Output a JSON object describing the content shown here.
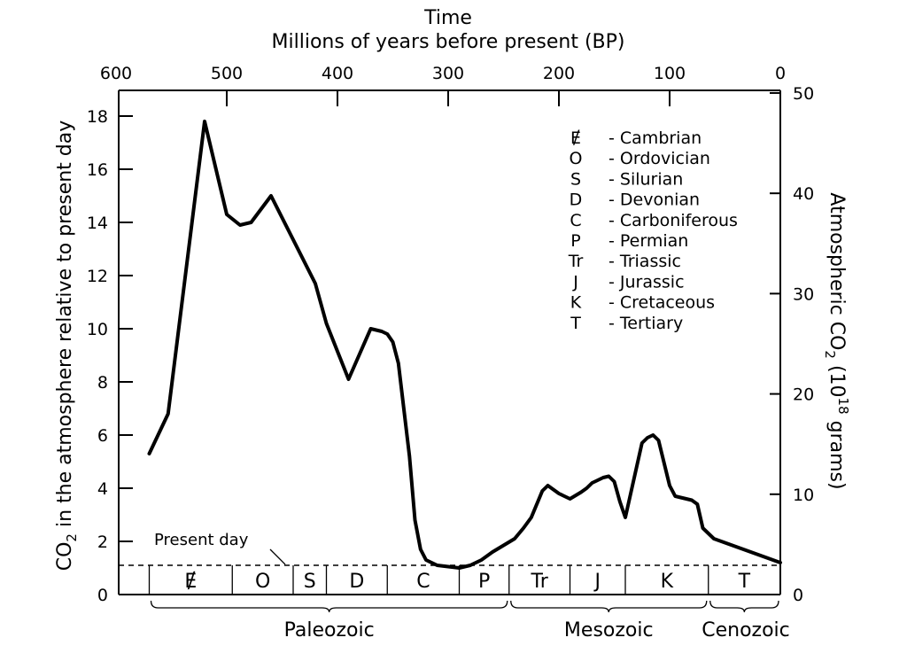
{
  "chart_data": {
    "type": "line",
    "title": "Time",
    "subtitle": "Millions of years before present (BP)",
    "ylabel_left": "CO₂ in the atmosphere relative to present day",
    "ylabel_right_prefix": "Atmospheric CO",
    "ylabel_right_sub": "2",
    "ylabel_right_mid": " (10",
    "ylabel_right_sup": "18",
    "ylabel_right_suffix": " grams)",
    "ylabel_left_co": "CO",
    "ylabel_left_sub": "2",
    "ylabel_left_rest": " in the atmosphere relative to present day",
    "xlim": [
      600,
      0
    ],
    "ylim_left": [
      0,
      19
    ],
    "x_ticks": [
      600,
      500,
      400,
      300,
      200,
      100,
      0
    ],
    "x_tick_labels": [
      "600",
      "500",
      "400",
      "300",
      "200",
      "100",
      "0"
    ],
    "y_left_ticks": [
      0,
      2,
      4,
      6,
      8,
      10,
      12,
      14,
      16,
      18
    ],
    "y_left_tick_labels": [
      "0",
      "2",
      "4",
      "6",
      "8",
      "10",
      "12",
      "14",
      "16",
      "18"
    ],
    "y_right_ticks": [
      0,
      10,
      20,
      30,
      40,
      50
    ],
    "y_right_tick_labels": [
      "0",
      "10",
      "20",
      "30",
      "40",
      "50"
    ],
    "y_right_per_left_unit": 2.65,
    "series": [
      {
        "x": [
          570,
          553,
          520,
          500,
          488,
          478,
          460,
          420,
          410,
          390,
          370,
          360,
          355,
          350,
          345,
          335,
          330,
          325,
          320,
          310,
          300,
          290,
          280,
          270,
          260,
          240,
          232,
          225,
          215,
          210,
          200,
          190,
          180,
          175,
          170,
          165,
          160,
          155,
          150,
          145,
          140,
          125,
          120,
          115,
          110,
          100,
          95,
          90,
          85,
          80,
          75,
          70,
          60,
          40,
          20,
          0
        ],
        "y": [
          5.3,
          6.8,
          17.8,
          14.3,
          13.9,
          14.0,
          15.0,
          11.7,
          10.2,
          8.1,
          10.0,
          9.9,
          9.8,
          9.5,
          8.7,
          5.2,
          2.8,
          1.7,
          1.3,
          1.1,
          1.05,
          1.0,
          1.1,
          1.3,
          1.6,
          2.1,
          2.5,
          2.9,
          3.9,
          4.1,
          3.8,
          3.6,
          3.85,
          4.0,
          4.2,
          4.3,
          4.4,
          4.45,
          4.25,
          3.5,
          2.9,
          5.7,
          5.9,
          6.0,
          5.8,
          4.1,
          3.7,
          3.65,
          3.6,
          3.55,
          3.4,
          2.5,
          2.1,
          1.8,
          1.5,
          1.2
        ]
      }
    ],
    "reference_line": {
      "y": 1.1,
      "label": "Present day"
    },
    "periods": [
      {
        "symbol": "Ɇ",
        "start": 570,
        "end": 495
      },
      {
        "symbol": "O",
        "start": 495,
        "end": 440
      },
      {
        "symbol": "S",
        "start": 440,
        "end": 410
      },
      {
        "symbol": "D",
        "start": 410,
        "end": 355
      },
      {
        "symbol": "C",
        "start": 355,
        "end": 290
      },
      {
        "symbol": "P",
        "start": 290,
        "end": 245
      },
      {
        "symbol": "Tr",
        "start": 245,
        "end": 190
      },
      {
        "symbol": "J",
        "start": 190,
        "end": 140
      },
      {
        "symbol": "K",
        "start": 140,
        "end": 65
      },
      {
        "symbol": "T",
        "start": 65,
        "end": 0
      }
    ],
    "eras": [
      {
        "name": "Paleozoic",
        "start": 570,
        "end": 245
      },
      {
        "name": "Mesozoic",
        "start": 245,
        "end": 65
      },
      {
        "name": "Cenozoic",
        "start": 65,
        "end": 0
      }
    ],
    "legend": [
      {
        "symbol": "Ɇ",
        "text": "- Cambrian"
      },
      {
        "symbol": "O",
        "text": "- Ordovician"
      },
      {
        "symbol": "S",
        "text": "- Silurian"
      },
      {
        "symbol": "D",
        "text": "- Devonian"
      },
      {
        "symbol": "C",
        "text": "- Carboniferous"
      },
      {
        "symbol": "P",
        "text": "- Permian"
      },
      {
        "symbol": "Tr",
        "text": "- Triassic"
      },
      {
        "symbol": "J",
        "text": "- Jurassic"
      },
      {
        "symbol": "K",
        "text": "- Cretaceous"
      },
      {
        "symbol": "T",
        "text": "- Tertiary"
      }
    ],
    "grid": false,
    "legend_placement": "top-right"
  }
}
